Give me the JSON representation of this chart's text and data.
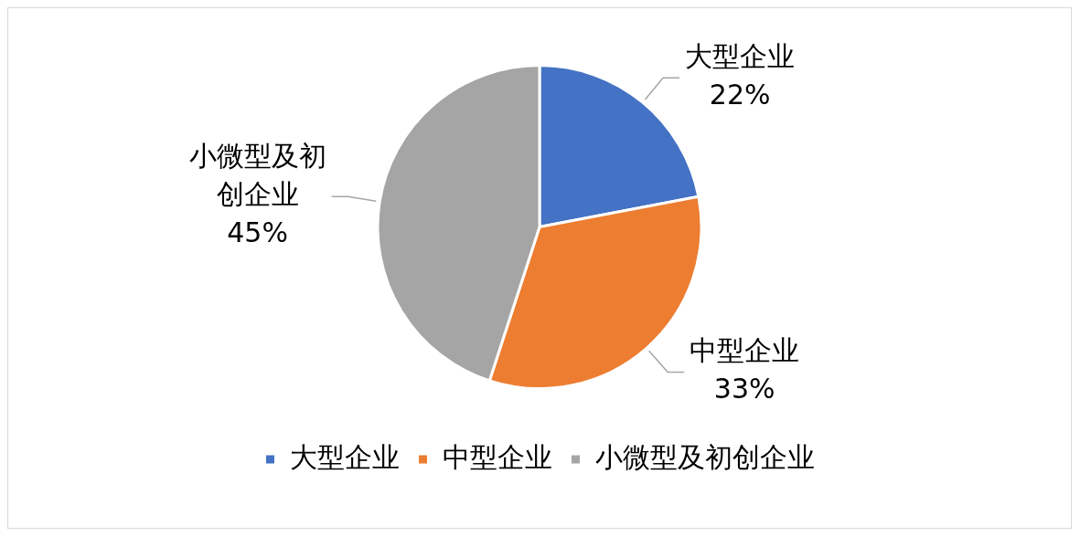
{
  "chart_data": {
    "type": "pie",
    "categories": [
      "大型企业",
      "中型企业",
      "小微型及初创企业"
    ],
    "values": [
      22,
      33,
      45
    ],
    "colors": [
      "#4472c4",
      "#ed7d31",
      "#a5a5a5"
    ],
    "value_labels": [
      "22%",
      "33%",
      "45%"
    ],
    "legend": "bottom"
  }
}
